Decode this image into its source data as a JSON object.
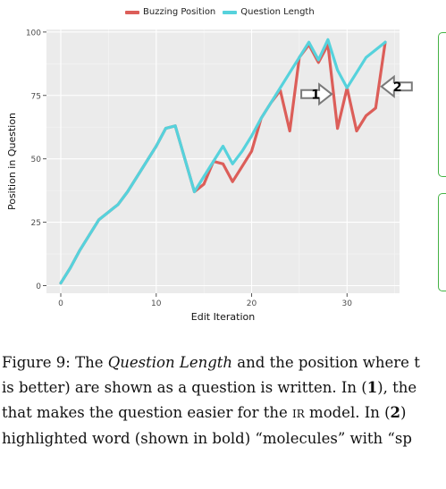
{
  "chart_data": {
    "type": "line",
    "xlabel": "Edit Iteration",
    "ylabel": "Position in Question",
    "xlim": [
      -1.5,
      35.5
    ],
    "ylim": [
      -3,
      101
    ],
    "x_ticks": [
      0,
      10,
      20,
      30
    ],
    "y_ticks": [
      0,
      25,
      50,
      75,
      100
    ],
    "grid": true,
    "legend_position": "top",
    "series": [
      {
        "name": "Buzzing Position",
        "color": "#dc5e59",
        "x": [
          0,
          1,
          2,
          3,
          4,
          5,
          6,
          7,
          8,
          9,
          10,
          11,
          12,
          13,
          14,
          15,
          16,
          17,
          18,
          19,
          20,
          21,
          22,
          23,
          24,
          25,
          26,
          27,
          28,
          29,
          30,
          31,
          32,
          33,
          34
        ],
        "values": [
          1,
          7,
          14,
          20,
          26,
          29,
          32,
          37,
          43,
          49,
          55,
          62,
          63,
          50,
          37,
          40,
          49,
          48,
          41,
          47,
          53,
          66,
          72,
          77,
          61,
          90,
          95,
          88,
          95,
          62,
          78,
          61,
          67,
          70,
          96
        ]
      },
      {
        "name": "Question Length",
        "color": "#56d2dc",
        "x": [
          0,
          1,
          2,
          3,
          4,
          5,
          6,
          7,
          8,
          9,
          10,
          11,
          12,
          13,
          14,
          15,
          16,
          17,
          18,
          19,
          20,
          21,
          22,
          23,
          24,
          25,
          26,
          27,
          28,
          29,
          30,
          31,
          32,
          33,
          34
        ],
        "values": [
          1,
          7,
          14,
          20,
          26,
          29,
          32,
          37,
          43,
          49,
          55,
          62,
          63,
          50,
          37,
          43,
          49,
          55,
          48,
          53,
          59,
          66,
          72,
          78,
          84,
          90,
          96,
          89,
          97,
          85,
          78,
          84,
          90,
          93,
          96
        ]
      }
    ],
    "annotations": [
      {
        "label": "1",
        "x": 26.8,
        "y": 75.5,
        "direction": "right"
      },
      {
        "label": "2",
        "x": 35.2,
        "y": 78.5,
        "direction": "left"
      }
    ]
  },
  "caption": {
    "line1_prefix": "Figure 9: The ",
    "line1_em": "Question Length",
    "line1_suffix": " and the position where t",
    "line2_prefix": "is better) are shown as a question is written. In (",
    "line2_b": "1",
    "line2_suffix": "), the",
    "line3_prefix": "that makes the question easier for the ",
    "line3_sc": "IR",
    "line3_mid": " model. In (",
    "line3_b": "2",
    "line3_suffix": ")",
    "line4": "highlighted word (shown in bold) “molecules” with “sp"
  },
  "colors": {
    "panel_background": "#ebebeb",
    "grid_major": "#ffffff",
    "side_box_border": "#44b244"
  }
}
